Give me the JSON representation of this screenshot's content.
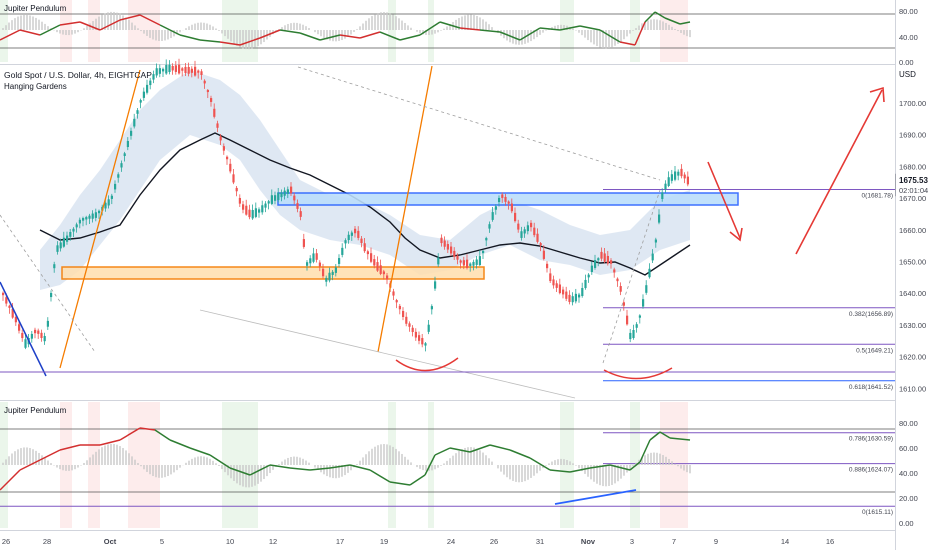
{
  "instrument": {
    "title": "Gold Spot / U.S. Dollar, 4h, EIGHTCAP",
    "indicator": "Hanging Gardens"
  },
  "top_pane": {
    "title": "Jupiter Pendulum",
    "ticks": [
      "80.00",
      "40.00",
      "0.00"
    ]
  },
  "bottom_pane": {
    "title": "Jupiter Pendulum",
    "ticks": [
      "80.00",
      "60.00",
      "40.00",
      "20.00",
      "0.00"
    ]
  },
  "price_axis": {
    "unit": "USD",
    "ticks": [
      "1700.00",
      "1690.00",
      "1680.00",
      "1670.00",
      "1660.00",
      "1650.00",
      "1640.00",
      "1630.00",
      "1620.00",
      "1610.00"
    ],
    "last_price": "1675.53",
    "countdown": "02:01:04"
  },
  "time_axis": {
    "labels": [
      "26",
      "28",
      "Oct",
      "5",
      "10",
      "12",
      "17",
      "19",
      "24",
      "26",
      "31",
      "Nov",
      "3",
      "7",
      "9",
      "14",
      "16"
    ]
  },
  "fib_levels": [
    {
      "label": "0(1681.78)",
      "price": 1681.78,
      "color": "#7e57c2"
    },
    {
      "label": "0.382(1656.89)",
      "price": 1656.89,
      "color": "#7e57c2"
    },
    {
      "label": "0.5(1649.21)",
      "price": 1649.21,
      "color": "#7e57c2"
    },
    {
      "label": "0.618(1641.52)",
      "price": 1641.52,
      "color": "#2962ff"
    },
    {
      "label": "0.786(1630.59)",
      "price": 1630.59,
      "color": "#7e57c2"
    },
    {
      "label": "0.886(1624.07)",
      "price": 1624.07,
      "color": "#7e57c2"
    },
    {
      "label": "0(1615.11)",
      "price": 1615.11,
      "color": "#7e57c2"
    }
  ],
  "colors": {
    "up": "#26a69a",
    "down": "#ef5350",
    "osc_green": "#2e7d32",
    "osc_red": "#d32f2f",
    "zone_blue": "#2962ff",
    "zone_orange": "#f57c00",
    "arrow_red": "#e53935"
  },
  "icons": [
    "clock-icon"
  ]
}
